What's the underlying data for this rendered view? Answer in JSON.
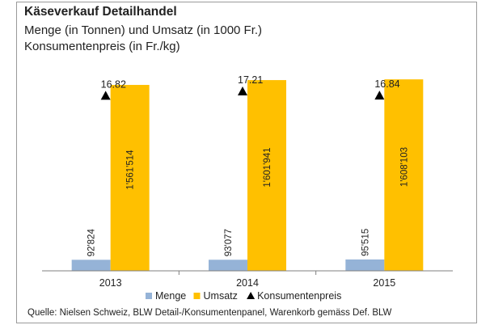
{
  "title": "Käseverkauf Detailhandel",
  "subtitle_line1": "Menge (in Tonnen) und Umsatz (in 1000 Fr.)",
  "subtitle_line2": "Konsumentenpreis (in Fr./kg)",
  "source": "Quelle: Nielsen Schweiz, BLW Detail-/Konsumentenpanel, Warenkorb gemäss Def. BLW",
  "colors": {
    "menge": "#95b3d7",
    "umsatz": "#ffc000",
    "konsumentenpreis": "#000000",
    "axis": "#7f7f7f"
  },
  "chart_data": {
    "type": "bar",
    "categories": [
      "2013",
      "2014",
      "2015"
    ],
    "series": [
      {
        "name": "Menge",
        "values": [
          92824,
          93077,
          95515
        ],
        "labels": [
          "92'824",
          "93'077",
          "95'515"
        ],
        "color": "#95b3d7",
        "marker": "square"
      },
      {
        "name": "Umsatz",
        "values": [
          1561514,
          1601941,
          1608103
        ],
        "labels": [
          "1'561'514",
          "1'601'941",
          "1'608'103"
        ],
        "color": "#ffc000",
        "marker": "square"
      },
      {
        "name": "Konsumentenpreis",
        "values": [
          16.82,
          17.21,
          16.84
        ],
        "labels": [
          "16.82",
          "17.21",
          "16.84"
        ],
        "color": "#000000",
        "marker": "triangle"
      }
    ],
    "ylim": [
      0,
      1650000
    ],
    "grid": false,
    "legend_position": "bottom"
  }
}
